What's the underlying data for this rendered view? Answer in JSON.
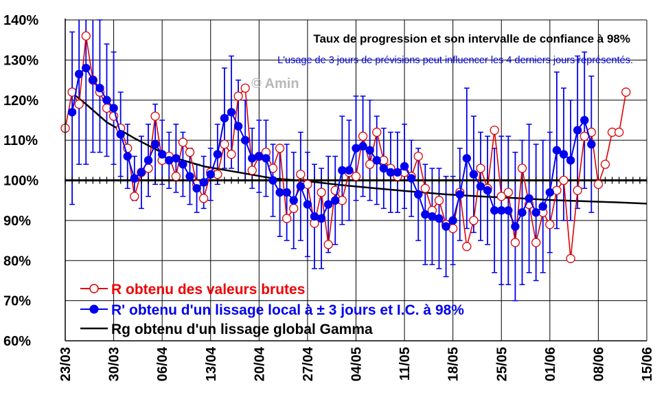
{
  "chart_data": {
    "type": "line",
    "title": "Taux de progression et son intervalle de confiance à 98%",
    "subtitle": "L'usage de 3 jours de prévisions peut influencer les 4 derniers jours représentés.",
    "watermark": "© Amin",
    "ylim": [
      60,
      140
    ],
    "y_ticks": [
      "60%",
      "70%",
      "80%",
      "90%",
      "100%",
      "110%",
      "120%",
      "130%",
      "140%"
    ],
    "x_tick_labels": [
      "23/03",
      "30/03",
      "06/04",
      "13/04",
      "20/04",
      "27/04",
      "04/05",
      "11/05",
      "18/05",
      "25/05",
      "01/06",
      "08/06",
      "15/06"
    ],
    "x_range_days": [
      0,
      84
    ],
    "reference_line": 100,
    "legend": [
      {
        "key": "raw",
        "label": "R obtenu des valeurs brutes"
      },
      {
        "key": "smooth",
        "label": "R' obtenu d'un lissage local à ± 3 jours et I.C. à 98%"
      },
      {
        "key": "global",
        "label": "Rg obtenu d'un lissage global Gamma"
      }
    ],
    "colors": {
      "raw": "#dd0000",
      "smooth": "#0000ee",
      "global": "#000000",
      "ci": "#0000ee"
    },
    "series": [
      {
        "key": "raw",
        "name": "R obtenu des valeurs brutes",
        "values": [
          113,
          122,
          119,
          136,
          125,
          122,
          118,
          116,
          113,
          108,
          96,
          102,
          103,
          116,
          105,
          106,
          101,
          109.5,
          107,
          99,
          95.5,
          102,
          101.5,
          109,
          106.5,
          121,
          123,
          102.5,
          106,
          107,
          103,
          108,
          90.5,
          93,
          101.5,
          99,
          89.3,
          97,
          84,
          97.5,
          95,
          102,
          101,
          111,
          104,
          112,
          105,
          103,
          101,
          102,
          101,
          106,
          98,
          92.5,
          95,
          89,
          88,
          97,
          83.5,
          90,
          103,
          98,
          112.5,
          96,
          97,
          84.5,
          103,
          94,
          84.5,
          92,
          89,
          97.5,
          100,
          80.5,
          97.5,
          111,
          112,
          99,
          104,
          112,
          112,
          122
        ]
      },
      {
        "key": "smooth",
        "name": "R' obtenu d'un lissage local à ± 3 jours et I.C. à 98%",
        "values": [
          117,
          126.5,
          128,
          125,
          123,
          120,
          118,
          111.5,
          106,
          100.5,
          102,
          105,
          109,
          106.5,
          105,
          105.5,
          104,
          101,
          98,
          99.5,
          101.5,
          106.5,
          115.5,
          117,
          113.5,
          110,
          105.5,
          106,
          105.5,
          100,
          97,
          97,
          95,
          98.5,
          94,
          91,
          90.5,
          94,
          95,
          102.5,
          102.5,
          108,
          108.5,
          107.5,
          105,
          103,
          102,
          102,
          103.5,
          100.5,
          96.5,
          91.5,
          91,
          90.5,
          88.5,
          90,
          96.5,
          105.5,
          101.5,
          98.5,
          97.5,
          92.5,
          92.5,
          92.5,
          88.5,
          92,
          95.5,
          92,
          93.5,
          97,
          107.5,
          106.5,
          105,
          112.5,
          115,
          109
        ]
      },
      {
        "key": "global",
        "name": "Rg obtenu d'un lissage global Gamma",
        "x": [
          0.5,
          3,
          6,
          10,
          15,
          20,
          25,
          30,
          35,
          40,
          45,
          50,
          55,
          60,
          65,
          70,
          75,
          80,
          84
        ],
        "values": [
          122.5,
          119,
          114.5,
          110.5,
          106,
          103.5,
          102,
          100.5,
          99.8,
          98.8,
          98,
          97.2,
          96.5,
          96,
          95.6,
          95.1,
          94.8,
          94.5,
          94.2
        ]
      }
    ],
    "confidence_interval": {
      "lower": [
        94,
        104,
        104,
        107,
        107,
        106,
        104,
        101,
        98,
        95,
        93,
        96,
        99,
        99,
        98,
        97,
        96,
        94,
        92,
        93,
        95,
        99,
        103,
        103,
        102,
        100,
        98,
        97,
        96,
        91,
        86,
        85,
        83,
        85,
        81,
        78,
        78,
        82,
        84,
        89,
        90,
        95,
        96,
        95,
        94,
        93,
        92,
        92,
        93,
        91,
        85,
        79,
        79,
        78,
        76,
        79,
        85,
        88,
        87,
        85,
        84,
        77,
        74,
        74,
        70,
        74,
        77,
        75,
        77,
        82,
        88,
        90,
        90,
        93,
        98,
        92
      ],
      "upper": [
        137,
        149,
        152,
        144,
        140,
        134,
        132,
        122,
        114,
        106,
        111,
        114,
        119,
        115,
        112,
        114,
        112,
        108,
        104,
        106,
        108,
        114,
        128,
        131,
        125,
        120,
        113,
        115,
        115,
        109,
        108,
        109,
        107,
        112,
        107,
        104,
        103,
        106,
        106,
        116,
        115,
        121,
        121,
        120,
        116,
        113,
        112,
        112,
        114,
        110,
        108,
        104,
        103,
        103,
        101,
        101,
        108,
        123,
        116,
        112,
        111,
        108,
        111,
        111,
        107,
        110,
        114,
        109,
        110,
        112,
        127,
        123,
        120,
        131,
        132,
        126
      ]
    }
  }
}
